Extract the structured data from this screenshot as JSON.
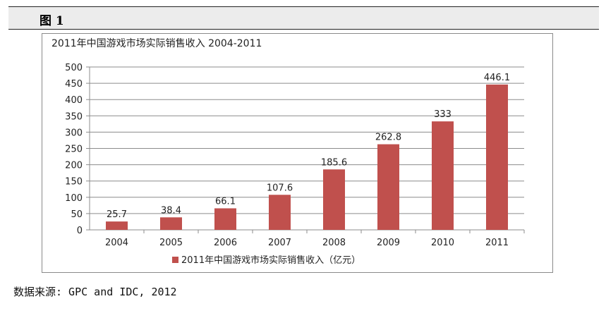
{
  "header": {
    "label": "图  1"
  },
  "source": "数据来源: GPC and IDC, 2012",
  "colors": {
    "bar": "#c0504d",
    "grid": "#8c8c8c",
    "text": "#222222"
  },
  "chart_data": {
    "type": "bar",
    "title": "2011年中国游戏市场实际销售收入 2004-2011",
    "categories": [
      "2004",
      "2005",
      "2006",
      "2007",
      "2008",
      "2009",
      "2010",
      "2011"
    ],
    "series": [
      {
        "name": "2011年中国游戏市场实际销售收入（亿元）",
        "values": [
          25.7,
          38.4,
          66.1,
          107.6,
          185.6,
          262.8,
          333,
          446.1
        ],
        "labels": [
          "25.7",
          "38.4",
          "66.1",
          "107.6",
          "185.6",
          "262.8",
          "333",
          "446.1"
        ]
      }
    ],
    "ylim": [
      0,
      500
    ],
    "yticks": [
      "0",
      "50",
      "100",
      "150",
      "200",
      "250",
      "300",
      "350",
      "400",
      "450",
      "500"
    ],
    "grid": true,
    "legend": "bottom"
  }
}
